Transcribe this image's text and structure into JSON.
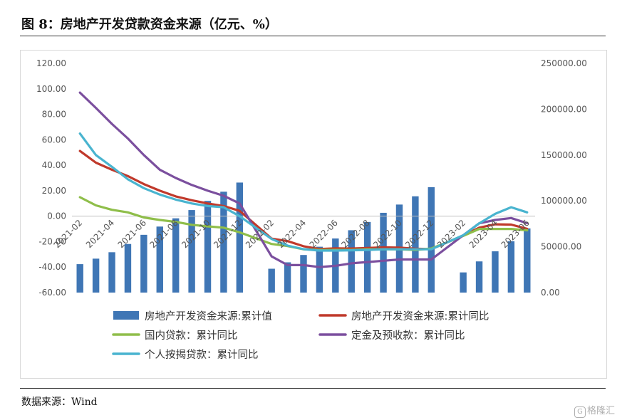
{
  "figure": {
    "title": "图 8：房地产开发贷款资金来源（亿元、%）",
    "source": "数据来源：Wind",
    "watermark": "格隆汇"
  },
  "chart_data": {
    "type": "bar+line",
    "categories": [
      "2021-02",
      "2021-03",
      "2021-04",
      "2021-05",
      "2021-06",
      "2021-07",
      "2021-08",
      "2021-09",
      "2021-10",
      "2021-11",
      "2021-12",
      "2022-01",
      "2022-02",
      "2022-03",
      "2022-04",
      "2022-05",
      "2022-06",
      "2022-07",
      "2022-08",
      "2022-09",
      "2022-10",
      "2022-11",
      "2022-12",
      "2023-01",
      "2023-02",
      "2023-03",
      "2023-04",
      "2023-05",
      "2023-06"
    ],
    "x_tick_labels": [
      "2021-02",
      "2021-04",
      "2021-06",
      "2021-08",
      "2021-10",
      "2021-12",
      "2022-02",
      "2022-04",
      "2022-06",
      "2022-08",
      "2022-10",
      "2022-12",
      "2023-02",
      "2023-04",
      "2023-06"
    ],
    "left_axis": {
      "min": -60,
      "max": 120,
      "step": 20,
      "tick_labels": [
        "120.00",
        "100.00",
        "80.00",
        "60.00",
        "40.00",
        "20.00",
        "0.00",
        "-20.00",
        "-40.00",
        "-60.00"
      ]
    },
    "right_axis": {
      "min": 0,
      "max": 250000,
      "step": 50000,
      "tick_labels": [
        "250000.00",
        "200000.00",
        "150000.00",
        "100000.00",
        "50000.00",
        "0.00"
      ]
    },
    "bar_series": {
      "name": "房地产开发资金来源:累计值",
      "color": "#3f76b5",
      "axis": "right",
      "values": [
        31000,
        37000,
        44000,
        53000,
        63000,
        72000,
        81000,
        90000,
        100000,
        110000,
        120000,
        null,
        26000,
        33000,
        41000,
        50000,
        59000,
        68000,
        77000,
        87000,
        96000,
        105000,
        115000,
        null,
        22000,
        34000,
        45000,
        56000,
        70000
      ]
    },
    "line_series": [
      {
        "name": "房地产开发资金来源:累计同比",
        "color": "#c0392b",
        "axis": "left",
        "values": [
          51.2,
          42,
          36.5,
          31.5,
          25.2,
          20,
          15.5,
          12.5,
          10,
          8,
          4.2,
          null,
          -17.6,
          -19.6,
          -23.6,
          -25.8,
          -25.3,
          -25.4,
          -25.0,
          -24.5,
          -24.7,
          -25.5,
          -25.9,
          null,
          -15.2,
          -9.0,
          -6.4,
          -6.6,
          -9.9
        ]
      },
      {
        "name": "国内贷款：累计同比",
        "color": "#8fbe4a",
        "axis": "left",
        "values": [
          14.9,
          8.5,
          5.0,
          3.0,
          -1.0,
          -3.0,
          -4.5,
          -6.8,
          -8.0,
          -9.0,
          -12.7,
          null,
          -21.8,
          -23.5,
          -26.0,
          -26.5,
          -26.5,
          -26.5,
          -26.0,
          -26.0,
          -26.0,
          -26.5,
          -25.4,
          null,
          -15.5,
          -10.0,
          -10.0,
          -10.0,
          -11.1
        ]
      },
      {
        "name": "定金及预收款：累计同比",
        "color": "#7b4f9e",
        "axis": "left",
        "values": [
          97.0,
          85.0,
          72.5,
          61.0,
          48.0,
          36.5,
          30.0,
          24.5,
          20.0,
          16.0,
          10.0,
          null,
          -31.6,
          -38.4,
          -38.4,
          -40.0,
          -39.0,
          -37.0,
          -36.0,
          -35.0,
          -34.0,
          -34.0,
          -34.0,
          null,
          -15.0,
          -5.6,
          -3.0,
          -1.5,
          -5.5
        ]
      },
      {
        "name": "个人按揭贷款：累计同比",
        "color": "#49b4cf",
        "axis": "left",
        "values": [
          64.9,
          48.0,
          38.8,
          29.0,
          22.0,
          17.0,
          13.0,
          10.0,
          8.0,
          7.0,
          0.0,
          null,
          -17.9,
          -23.1,
          -25.9,
          -27.0,
          -27.0,
          -26.8,
          -26.5,
          -26.0,
          -26.0,
          -26.0,
          -26.0,
          null,
          -15.0,
          -5.6,
          1.8,
          7.0,
          3.0
        ]
      }
    ],
    "legend": [
      {
        "label": "房地产开发资金来源:累计值",
        "kind": "bar",
        "color": "#3f76b5"
      },
      {
        "label": "房地产开发资金来源:累计同比",
        "kind": "line",
        "color": "#c0392b"
      },
      {
        "label": "国内贷款：累计同比",
        "kind": "line",
        "color": "#8fbe4a"
      },
      {
        "label": "定金及预收款：累计同比",
        "kind": "line",
        "color": "#7b4f9e"
      },
      {
        "label": "个人按揭贷款：累计同比",
        "kind": "line",
        "color": "#49b4cf"
      }
    ],
    "legend_position": "bottom",
    "grid": false
  }
}
